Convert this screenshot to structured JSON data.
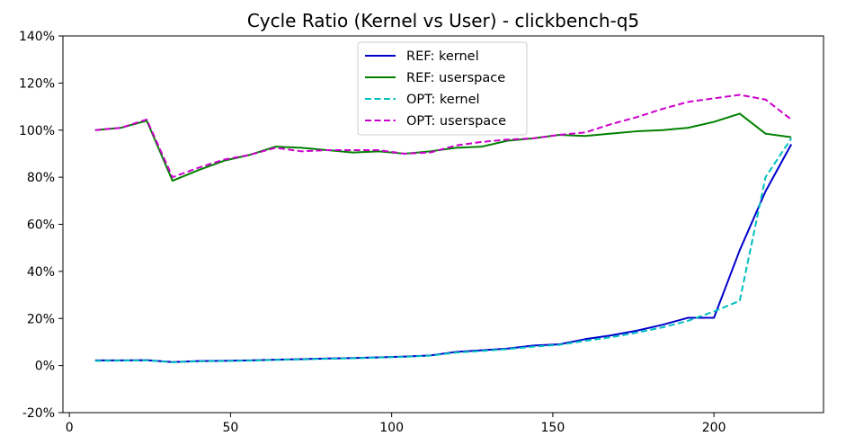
{
  "chart_data": {
    "type": "line",
    "title": "Cycle Ratio (Kernel vs User) - clickbench-q5",
    "xlabel": "",
    "ylabel": "",
    "xlim": [
      -2,
      234
    ],
    "ylim": [
      -20,
      140
    ],
    "xticks": [
      0,
      50,
      100,
      150,
      200
    ],
    "yticks": [
      -20,
      0,
      20,
      40,
      60,
      80,
      100,
      120,
      140
    ],
    "ytick_labels": [
      "-20%",
      "0%",
      "20%",
      "40%",
      "60%",
      "80%",
      "100%",
      "120%",
      "140%"
    ],
    "grid": false,
    "legend_position": "top-center",
    "series": [
      {
        "name": "REF: kernel",
        "color": "#0000cc",
        "dash": "solid",
        "x": [
          8,
          16,
          24,
          32,
          40,
          48,
          56,
          64,
          72,
          80,
          88,
          96,
          104,
          112,
          120,
          128,
          136,
          144,
          152,
          160,
          168,
          176,
          184,
          192,
          200,
          208,
          216,
          224
        ],
        "y": [
          2.2,
          2.2,
          2.3,
          1.5,
          1.9,
          2.0,
          2.2,
          2.5,
          2.7,
          3.0,
          3.2,
          3.5,
          3.8,
          4.3,
          5.8,
          6.5,
          7.2,
          8.5,
          9.0,
          11.2,
          12.8,
          14.8,
          17.3,
          20.3,
          20.3,
          49,
          74,
          94
        ]
      },
      {
        "name": "REF: userspace",
        "color": "#008000",
        "dash": "solid",
        "x": [
          8,
          16,
          24,
          32,
          40,
          48,
          56,
          64,
          72,
          80,
          88,
          96,
          104,
          112,
          120,
          128,
          136,
          144,
          152,
          160,
          168,
          176,
          184,
          192,
          200,
          208,
          216,
          224
        ],
        "y": [
          100,
          101,
          104,
          78.5,
          83,
          87,
          89.5,
          93,
          92.5,
          91.5,
          90.5,
          91,
          90,
          91,
          92.5,
          93,
          95.5,
          96.5,
          98,
          97.5,
          98.5,
          99.5,
          100,
          101,
          103.5,
          107,
          98.5,
          97
        ]
      },
      {
        "name": "OPT: kernel",
        "color": "#00bfbf",
        "dash": "dashed",
        "x": [
          8,
          16,
          24,
          32,
          40,
          48,
          56,
          64,
          72,
          80,
          88,
          96,
          104,
          112,
          120,
          128,
          136,
          144,
          152,
          160,
          168,
          176,
          184,
          192,
          200,
          208,
          216,
          224
        ],
        "y": [
          2.0,
          2.1,
          2.2,
          1.4,
          1.8,
          1.9,
          2.1,
          2.4,
          2.6,
          2.9,
          3.1,
          3.4,
          3.7,
          4.2,
          5.5,
          6.2,
          7.0,
          8.0,
          8.8,
          10.5,
          12.0,
          14.0,
          16.2,
          19.0,
          23.0,
          27.5,
          80,
          96.5
        ]
      },
      {
        "name": "OPT: userspace",
        "color": "#cc00cc",
        "dash": "dashed",
        "x": [
          8,
          16,
          24,
          32,
          40,
          48,
          56,
          64,
          72,
          80,
          88,
          96,
          104,
          112,
          120,
          128,
          136,
          144,
          152,
          160,
          168,
          176,
          184,
          192,
          200,
          208,
          216,
          224
        ],
        "y": [
          100,
          101,
          104.5,
          80,
          84,
          87.5,
          89.5,
          92.5,
          91,
          91.5,
          91.5,
          91.5,
          90,
          90.5,
          93.5,
          95,
          96,
          96.5,
          98,
          99,
          102.5,
          105.5,
          109,
          112,
          113.5,
          115,
          113,
          104.5
        ]
      }
    ]
  }
}
